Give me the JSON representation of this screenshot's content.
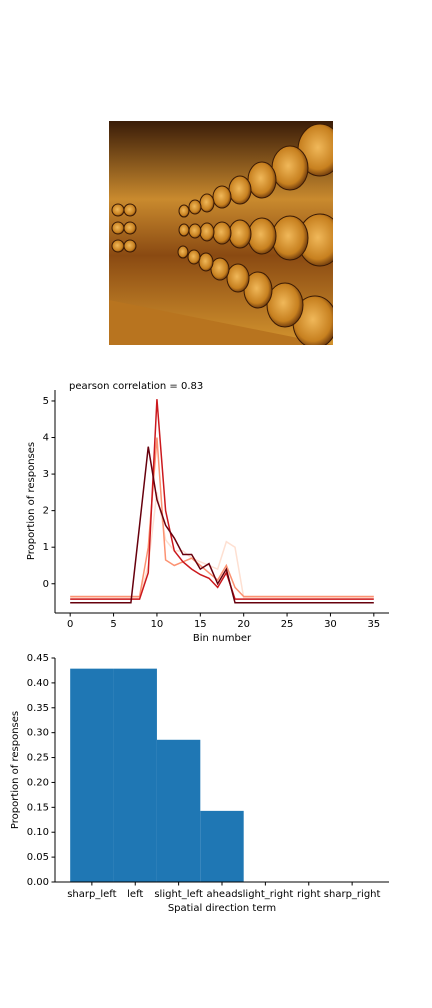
{
  "chart_data": [
    {
      "type": "line",
      "annotation": "pearson correlation = 0.83",
      "xlabel": "Bin number",
      "ylabel": "Proportion of responses",
      "x": [
        0,
        1,
        2,
        3,
        4,
        5,
        6,
        7,
        8,
        9,
        10,
        11,
        12,
        13,
        14,
        15,
        16,
        17,
        18,
        19,
        20,
        21,
        22,
        23,
        24,
        25,
        26,
        27,
        28,
        29,
        30,
        31,
        32,
        33,
        34,
        35
      ],
      "series": [
        {
          "color": "#fee0d2",
          "values": [
            -0.38,
            -0.38,
            -0.38,
            -0.38,
            -0.38,
            -0.38,
            -0.38,
            -0.38,
            -0.38,
            0.5,
            2.5,
            1.2,
            0.9,
            0.9,
            0.7,
            0.6,
            0.5,
            0.4,
            1.15,
            1.0,
            -0.38,
            -0.38,
            -0.38,
            -0.38,
            -0.38,
            -0.38,
            -0.38,
            -0.38,
            -0.38,
            -0.38,
            -0.38,
            -0.38,
            -0.38,
            -0.38,
            -0.38,
            -0.38
          ]
        },
        {
          "color": "#fc9272",
          "values": [
            -0.35,
            -0.35,
            -0.35,
            -0.35,
            -0.35,
            -0.35,
            -0.35,
            -0.35,
            -0.35,
            1.0,
            4.0,
            0.65,
            0.5,
            0.6,
            0.7,
            0.5,
            0.3,
            0.1,
            0.5,
            -0.1,
            -0.35,
            -0.35,
            -0.35,
            -0.35,
            -0.35,
            -0.35,
            -0.35,
            -0.35,
            -0.35,
            -0.35,
            -0.35,
            -0.35,
            -0.35,
            -0.35,
            -0.35,
            -0.35
          ]
        },
        {
          "color": "#cb181d",
          "values": [
            -0.42,
            -0.42,
            -0.42,
            -0.42,
            -0.42,
            -0.42,
            -0.42,
            -0.42,
            -0.42,
            0.3,
            5.05,
            2.0,
            0.9,
            0.6,
            0.4,
            0.25,
            0.15,
            -0.1,
            0.3,
            -0.42,
            -0.42,
            -0.42,
            -0.42,
            -0.42,
            -0.42,
            -0.42,
            -0.42,
            -0.42,
            -0.42,
            -0.42,
            -0.42,
            -0.42,
            -0.42,
            -0.42,
            -0.42,
            -0.42
          ]
        },
        {
          "color": "#67000d",
          "values": [
            -0.52,
            -0.52,
            -0.52,
            -0.52,
            -0.52,
            -0.52,
            -0.52,
            -0.52,
            1.6,
            3.75,
            2.3,
            1.6,
            1.25,
            0.8,
            0.8,
            0.4,
            0.55,
            0.0,
            0.4,
            -0.52,
            -0.52,
            -0.52,
            -0.52,
            -0.52,
            -0.52,
            -0.52,
            -0.52,
            -0.52,
            -0.52,
            -0.52,
            -0.52,
            -0.52,
            -0.52,
            -0.52,
            -0.52,
            -0.52
          ]
        }
      ],
      "xlim": [
        -1.75,
        36.75
      ],
      "xticks": [
        0,
        5,
        10,
        15,
        20,
        25,
        30,
        35
      ],
      "ylim": [
        -0.8,
        5.3
      ],
      "yticks": [
        0,
        1,
        2,
        3,
        4,
        5
      ]
    },
    {
      "type": "bar",
      "xlabel": "Spatial direction term",
      "ylabel": "Proportion of responses",
      "categories": [
        "sharp_left",
        "left",
        "slight_left",
        "ahead",
        "slight_right",
        "right",
        "sharp_right"
      ],
      "values": [
        0.4286,
        0.4286,
        0.2857,
        0.1429,
        0,
        0,
        0
      ],
      "color": "#1f77b4",
      "ylim": [
        0,
        0.45
      ],
      "yticks": [
        {
          "value": 0,
          "label": "0.00"
        },
        {
          "value": 0.05,
          "label": "0.05"
        },
        {
          "value": 0.1,
          "label": "0.10"
        },
        {
          "value": 0.15,
          "label": "0.15"
        },
        {
          "value": 0.2,
          "label": "0.20"
        },
        {
          "value": 0.25,
          "label": "0.25"
        },
        {
          "value": 0.3,
          "label": "0.30"
        },
        {
          "value": 0.35,
          "label": "0.35"
        },
        {
          "value": 0.4,
          "label": "0.40"
        },
        {
          "value": 0.45,
          "label": "0.45"
        }
      ]
    }
  ]
}
